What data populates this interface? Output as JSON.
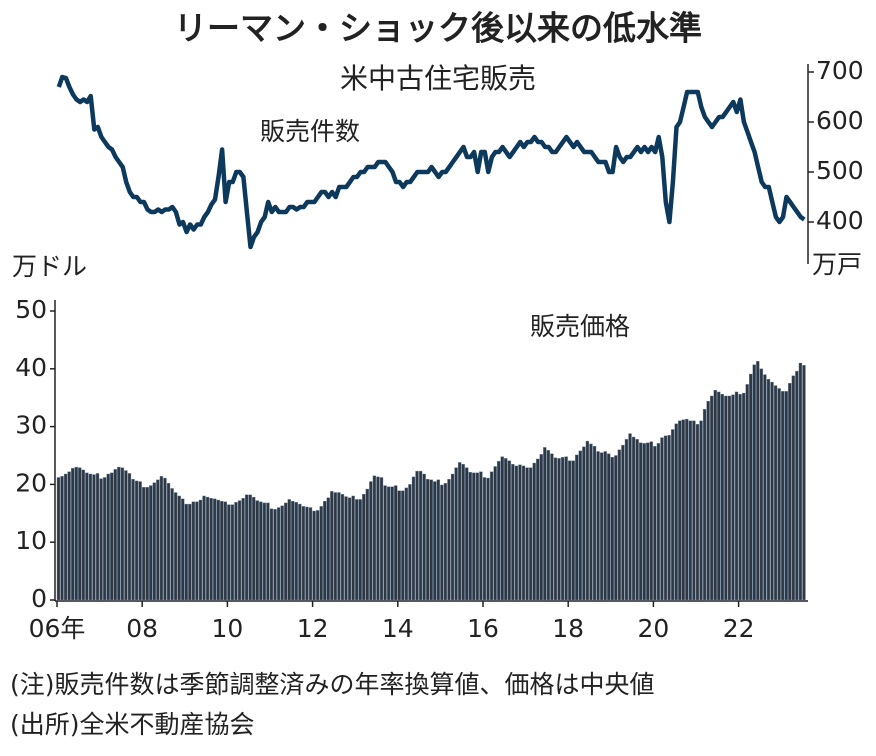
{
  "title": "リーマン・ショック後以来の低水準",
  "subtitle": "米中古住宅販売",
  "notes": [
    "(注)販売件数は季節調整済みの年率換算値、価格は中央値",
    "(出所)全米不動産協会"
  ],
  "chart_data": [
    {
      "type": "line",
      "y2_label": "万戸",
      "y2lim": [
        330,
        715
      ],
      "y2ticks": [
        400,
        500,
        600,
        700
      ],
      "series": [
        {
          "name": "販売件数",
          "color": "#0d3a5c",
          "axis": "y2",
          "values": [
            670,
            690,
            688,
            670,
            655,
            645,
            640,
            645,
            640,
            652,
            585,
            590,
            570,
            560,
            550,
            545,
            530,
            520,
            510,
            480,
            460,
            450,
            450,
            440,
            440,
            425,
            420,
            420,
            425,
            420,
            425,
            425,
            430,
            420,
            395,
            400,
            380,
            395,
            385,
            395,
            395,
            410,
            420,
            435,
            445,
            490,
            545,
            440,
            480,
            480,
            500,
            500,
            490,
            420,
            350,
            370,
            380,
            400,
            410,
            440,
            420,
            430,
            420,
            420,
            420,
            430,
            430,
            425,
            430,
            430,
            440,
            440,
            440,
            450,
            460,
            460,
            450,
            460,
            450,
            470,
            470,
            470,
            480,
            490,
            490,
            500,
            500,
            510,
            510,
            510,
            520,
            520,
            520,
            510,
            500,
            480,
            480,
            470,
            480,
            480,
            490,
            500,
            500,
            500,
            500,
            510,
            500,
            490,
            500,
            500,
            510,
            520,
            530,
            540,
            550,
            530,
            530,
            540,
            500,
            540,
            540,
            500,
            530,
            540,
            540,
            550,
            540,
            530,
            540,
            550,
            560,
            550,
            560,
            560,
            570,
            560,
            560,
            550,
            550,
            540,
            540,
            550,
            560,
            570,
            560,
            550,
            560,
            550,
            540,
            540,
            540,
            530,
            520,
            520,
            520,
            500,
            500,
            550,
            530,
            520,
            530,
            530,
            540,
            550,
            540,
            550,
            540,
            550,
            540,
            570,
            530,
            440,
            400,
            480,
            590,
            600,
            630,
            660,
            660,
            660,
            660,
            630,
            610,
            600,
            590,
            600,
            610,
            610,
            620,
            630,
            640,
            620,
            645,
            600,
            580,
            560,
            540,
            510,
            480,
            470,
            470,
            440,
            410,
            400,
            410,
            450,
            440,
            430,
            420,
            410,
            405
          ]
        }
      ]
    },
    {
      "type": "bar",
      "y_label": "万ドル",
      "ylim": [
        0,
        50
      ],
      "yticks": [
        0,
        10,
        20,
        30,
        40,
        50
      ],
      "categories": [
        "06年",
        null,
        null,
        null,
        null,
        null,
        null,
        null,
        null,
        null,
        null,
        null,
        null,
        null,
        null,
        null,
        null,
        null,
        null,
        null,
        null,
        null,
        null,
        null,
        "08",
        null,
        null,
        null,
        null,
        null,
        null,
        null,
        null,
        null,
        null,
        null,
        null,
        null,
        null,
        null,
        null,
        null,
        null,
        null,
        null,
        null,
        null,
        null,
        "10",
        null,
        null,
        null,
        null,
        null,
        null,
        null,
        null,
        null,
        null,
        null,
        null,
        null,
        null,
        null,
        null,
        null,
        null,
        null,
        null,
        null,
        null,
        null,
        "12",
        null,
        null,
        null,
        null,
        null,
        null,
        null,
        null,
        null,
        null,
        null,
        null,
        null,
        null,
        null,
        null,
        null,
        null,
        null,
        null,
        null,
        null,
        null,
        "14",
        null,
        null,
        null,
        null,
        null,
        null,
        null,
        null,
        null,
        null,
        null,
        null,
        null,
        null,
        null,
        null,
        null,
        null,
        null,
        null,
        null,
        null,
        null,
        "16",
        null,
        null,
        null,
        null,
        null,
        null,
        null,
        null,
        null,
        null,
        null,
        null,
        null,
        null,
        null,
        null,
        null,
        null,
        null,
        null,
        null,
        null,
        null,
        "18",
        null,
        null,
        null,
        null,
        null,
        null,
        null,
        null,
        null,
        null,
        null,
        null,
        null,
        null,
        null,
        null,
        null,
        null,
        null,
        null,
        null,
        null,
        null,
        "20",
        null,
        null,
        null,
        null,
        null,
        null,
        null,
        null,
        null,
        null,
        null,
        null,
        null,
        null,
        null,
        null,
        null,
        null,
        null,
        null,
        null,
        null,
        null,
        "22",
        null,
        null,
        null,
        null,
        null,
        null,
        null,
        null,
        null,
        null,
        null,
        null,
        null,
        null,
        null,
        null,
        null,
        null
      ],
      "series": [
        {
          "name": "販売価格",
          "color": "#2f3742",
          "values": [
            21.2,
            21.4,
            21.8,
            22.2,
            22.8,
            23.0,
            22.9,
            22.5,
            22.0,
            21.8,
            21.7,
            21.9,
            21.0,
            21.2,
            21.8,
            22.0,
            22.6,
            23.0,
            22.9,
            22.4,
            21.9,
            20.9,
            20.6,
            20.5,
            19.5,
            19.5,
            19.8,
            20.3,
            20.8,
            21.4,
            21.1,
            20.2,
            19.3,
            18.6,
            18.0,
            17.5,
            16.6,
            16.6,
            17.0,
            17.0,
            17.3,
            18.0,
            17.8,
            17.6,
            17.5,
            17.3,
            17.1,
            17.0,
            16.5,
            16.5,
            16.9,
            17.2,
            17.6,
            18.2,
            18.2,
            17.8,
            17.2,
            17.0,
            16.8,
            16.8,
            15.8,
            15.7,
            16.0,
            16.3,
            16.8,
            17.4,
            17.1,
            16.9,
            16.6,
            16.2,
            16.1,
            16.0,
            15.4,
            15.5,
            16.2,
            17.1,
            17.7,
            18.8,
            18.6,
            18.6,
            18.3,
            17.9,
            17.7,
            18.0,
            17.4,
            17.4,
            18.3,
            19.2,
            20.5,
            21.5,
            21.3,
            21.2,
            19.8,
            19.6,
            19.6,
            19.8,
            18.9,
            18.9,
            19.4,
            20.0,
            21.3,
            22.3,
            22.3,
            21.8,
            20.9,
            20.8,
            20.5,
            20.8,
            19.9,
            20.2,
            20.9,
            21.8,
            22.9,
            23.8,
            23.5,
            22.9,
            22.1,
            22.0,
            22.0,
            22.2,
            21.2,
            21.1,
            22.2,
            23.1,
            24.0,
            24.8,
            24.5,
            24.1,
            23.5,
            23.2,
            23.4,
            23.2,
            22.9,
            22.9,
            23.7,
            24.4,
            25.2,
            26.4,
            25.9,
            25.3,
            24.6,
            24.5,
            24.7,
            24.8,
            24.1,
            24.1,
            25.1,
            25.8,
            26.5,
            27.5,
            27.0,
            26.6,
            25.7,
            25.5,
            25.7,
            25.3,
            24.7,
            25.0,
            26.0,
            26.8,
            27.8,
            28.8,
            28.2,
            27.8,
            27.2,
            27.1,
            27.2,
            27.4,
            26.6,
            27.1,
            28.1,
            28.4,
            28.5,
            29.5,
            30.5,
            31.0,
            31.2,
            31.3,
            31.0,
            31.0,
            30.4,
            31.0,
            33.0,
            34.4,
            35.3,
            36.3,
            36.0,
            35.6,
            35.3,
            35.3,
            35.5,
            36.0,
            35.6,
            35.8,
            37.3,
            39.1,
            40.7,
            41.3,
            40.0,
            39.0,
            38.2,
            37.7,
            37.1,
            36.6,
            36.1,
            36.1,
            37.5,
            38.8,
            39.6,
            41.0,
            40.6
          ]
        }
      ]
    }
  ]
}
